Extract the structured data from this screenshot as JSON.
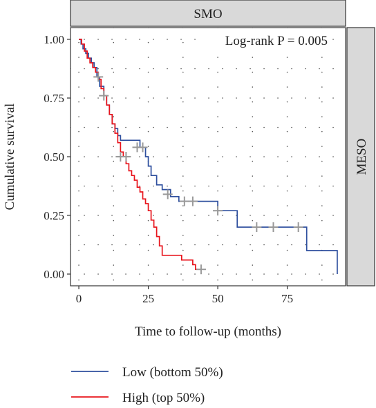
{
  "chart_data": {
    "type": "line",
    "subtype": "kaplan-meier",
    "facet_top": "SMO",
    "facet_right": "MESO",
    "xlabel": "Time to follow-up (months)",
    "ylabel": "Cumulative survival",
    "xlim": [
      -3,
      96
    ],
    "ylim": [
      -0.05,
      1.05
    ],
    "xticks": [
      0,
      25,
      50,
      75
    ],
    "yticks": [
      0.0,
      0.25,
      0.5,
      0.75,
      1.0
    ],
    "xtick_labels": [
      "0",
      "25",
      "50",
      "75"
    ],
    "ytick_labels": [
      "0.00",
      "0.25",
      "0.50",
      "0.75",
      "1.00"
    ],
    "grid": "dotted",
    "legend_position": "bottom-left",
    "annotation": "Log-rank P = 0.005",
    "series": [
      {
        "name": "Low (bottom 50%)",
        "color": "#2e4f9e",
        "x": [
          0,
          0.8,
          1.5,
          2.5,
          3.5,
          4.5,
          5.5,
          6.5,
          7.5,
          9,
          10,
          11,
          12,
          13,
          14,
          15,
          22,
          24,
          25,
          26,
          28,
          30,
          33,
          36,
          50,
          57,
          82,
          93
        ],
        "y": [
          1.0,
          0.98,
          0.96,
          0.94,
          0.92,
          0.9,
          0.88,
          0.84,
          0.8,
          0.76,
          0.72,
          0.68,
          0.64,
          0.62,
          0.59,
          0.57,
          0.54,
          0.5,
          0.46,
          0.42,
          0.38,
          0.36,
          0.33,
          0.31,
          0.27,
          0.2,
          0.1,
          0.0
        ],
        "censor_x": [
          7,
          9,
          21,
          23,
          32,
          38,
          41,
          50,
          64,
          70,
          79
        ],
        "censor_y": [
          0.84,
          0.76,
          0.54,
          0.54,
          0.34,
          0.31,
          0.31,
          0.27,
          0.2,
          0.2,
          0.2
        ]
      },
      {
        "name": "High (top 50%)",
        "color": "#e8141c",
        "x": [
          0,
          1,
          2,
          3,
          4,
          5,
          6,
          7,
          8,
          9,
          10,
          11,
          12,
          13,
          14,
          15,
          16,
          17,
          18,
          19,
          20,
          21,
          22,
          23,
          24,
          25,
          26,
          27,
          28,
          29,
          30,
          37,
          41,
          42,
          43
        ],
        "y": [
          1.0,
          0.98,
          0.95,
          0.92,
          0.9,
          0.88,
          0.86,
          0.83,
          0.79,
          0.76,
          0.72,
          0.68,
          0.64,
          0.6,
          0.56,
          0.52,
          0.5,
          0.47,
          0.44,
          0.42,
          0.4,
          0.37,
          0.35,
          0.32,
          0.3,
          0.27,
          0.23,
          0.2,
          0.16,
          0.12,
          0.08,
          0.06,
          0.04,
          0.02,
          0.02
        ],
        "censor_x": [
          15,
          17,
          44
        ],
        "censor_y": [
          0.5,
          0.5,
          0.02
        ]
      }
    ]
  }
}
